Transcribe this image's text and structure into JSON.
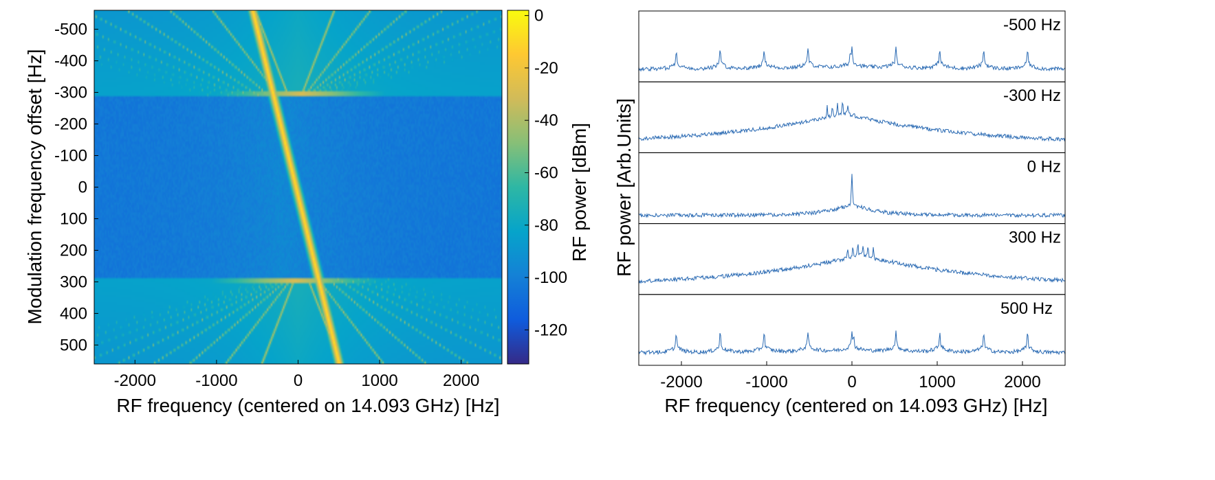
{
  "chart_data": [
    {
      "type": "heatmap",
      "xlabel": "RF frequency (centered on 14.093 GHz) [Hz]",
      "ylabel": "Modulation frequency offset [Hz]",
      "xlim": [
        -2500,
        2500
      ],
      "ylim": [
        -560,
        560
      ],
      "y_reversed": true,
      "x_ticks": [
        -2000,
        -1000,
        0,
        1000,
        2000
      ],
      "x_tick_labels": [
        "-2000",
        "-1000",
        "0",
        "1000",
        "2000"
      ],
      "y_ticks": [
        -500,
        -400,
        -300,
        -200,
        -100,
        0,
        100,
        200,
        300,
        400,
        500
      ],
      "y_tick_labels": [
        "-500",
        "-400",
        "-300",
        "-200",
        "-100",
        "0",
        "100",
        "200",
        "300",
        "400",
        "500"
      ],
      "colorbar": {
        "label": "RF power [dBm]",
        "range": [
          -133,
          2
        ],
        "ticks": [
          0,
          -20,
          -40,
          -60,
          -80,
          -100,
          -120
        ],
        "tick_labels": [
          "0",
          "-20",
          "-40",
          "-60",
          "-80",
          "-100",
          "-120"
        ],
        "colormap": "parula",
        "colors": [
          "#352a87",
          "#0f5cdd",
          "#1481d6",
          "#06a4ca",
          "#2eb7a4",
          "#87bf77",
          "#d1bb59",
          "#fec832",
          "#f9fb0e"
        ]
      },
      "background_level_dbm": -100,
      "sideband_region_threshold_hz": 290,
      "main_line": {
        "points": [
          [
            -300,
            -290
          ],
          [
            250,
            290
          ]
        ],
        "level_dbm": -5
      },
      "grid": false
    },
    {
      "type": "line",
      "xlabel": "RF frequency (centered on 14.093 GHz) [Hz]",
      "ylabel": "RF power [Arb.Units]",
      "xlim": [
        -2500,
        2500
      ],
      "x_ticks": [
        -2000,
        -1000,
        0,
        1000,
        2000
      ],
      "x_tick_labels": [
        "-2000",
        "-1000",
        "0",
        "1000",
        "2000"
      ],
      "line_color": "#2a6ab3",
      "panels": [
        {
          "label": "-500 Hz",
          "label_position": "top-right",
          "peak_spacing_hz": 515,
          "peaks_hz": [
            -2060,
            -1545,
            -1030,
            -515,
            0,
            515,
            1030,
            1545,
            2060
          ],
          "center_peak_hz": -20,
          "envelope": "flat-periodic"
        },
        {
          "label": "-300 Hz",
          "label_position": "top-right",
          "peak_spacing_hz": 60,
          "peaks_hz": [
            -290,
            -230,
            -170,
            -110,
            -50
          ],
          "envelope": "broad-hump",
          "hump_center_hz": -100
        },
        {
          "label": "0 Hz",
          "label_position": "top-right",
          "peaks_hz": [
            0
          ],
          "envelope": "central-bump",
          "hump_center_hz": 0
        },
        {
          "label": "300 Hz",
          "label_position": "top-right",
          "peak_spacing_hz": 60,
          "peaks_hz": [
            -50,
            10,
            70,
            130,
            190,
            250
          ],
          "envelope": "broad-hump",
          "hump_center_hz": 100
        },
        {
          "label": "500 Hz",
          "label_position": "top-left",
          "peak_spacing_hz": 515,
          "peaks_hz": [
            -2060,
            -1545,
            -1030,
            -515,
            0,
            515,
            1030,
            1545,
            2060
          ],
          "center_peak_hz": 20,
          "envelope": "flat-periodic"
        }
      ]
    }
  ]
}
